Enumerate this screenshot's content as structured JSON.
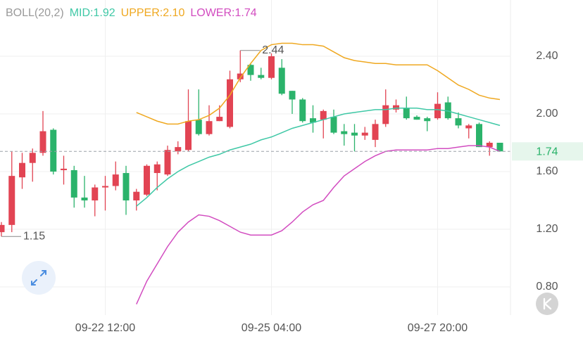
{
  "chart_data": {
    "type": "candlestick",
    "indicator": "BOLL(20,2)",
    "categories": [
      null,
      null,
      null,
      null,
      null,
      null,
      null,
      null,
      null,
      null,
      "09-22 12:00",
      null,
      null,
      null,
      null,
      null,
      null,
      null,
      null,
      null,
      null,
      null,
      null,
      null,
      null,
      null,
      "09-25 04:00",
      null,
      null,
      null,
      null,
      null,
      null,
      null,
      null,
      null,
      null,
      null,
      null,
      null,
      null,
      null,
      "09-27 20:00",
      null,
      null,
      null,
      null,
      null,
      null
    ],
    "open": [
      1.18,
      1.23,
      1.56,
      1.66,
      1.73,
      1.89,
      1.61,
      1.61,
      1.42,
      1.4,
      1.49,
      1.5,
      1.59,
      1.4,
      1.44,
      1.59,
      1.58,
      1.74,
      1.75,
      1.96,
      1.86,
      1.95,
      1.91,
      2.24,
      2.34,
      2.27,
      2.25,
      2.32,
      2.16,
      2.1,
      1.97,
      1.96,
      1.98,
      1.88,
      1.87,
      1.85,
      1.82,
      1.93,
      2.03,
      2.04,
      1.98,
      1.97,
      1.97,
      2.08,
      1.97,
      1.9,
      1.93,
      1.77,
      1.8
    ],
    "high": [
      1.25,
      1.74,
      1.73,
      1.76,
      2.02,
      1.9,
      1.71,
      1.64,
      1.57,
      1.51,
      1.57,
      1.67,
      1.64,
      1.48,
      1.65,
      1.67,
      1.78,
      1.81,
      2.17,
      2.17,
      2.06,
      2.06,
      2.3,
      2.44,
      2.35,
      2.32,
      2.42,
      2.38,
      2.16,
      2.11,
      2.06,
      2.03,
      2.03,
      1.93,
      1.93,
      1.91,
      1.96,
      2.17,
      2.1,
      2.12,
      1.99,
      1.98,
      2.15,
      2.12,
      2.01,
      1.93,
      1.94,
      1.81,
      1.8
    ],
    "low": [
      1.15,
      1.18,
      1.48,
      1.53,
      1.71,
      1.58,
      1.51,
      1.35,
      1.35,
      1.29,
      1.33,
      1.47,
      1.3,
      1.33,
      1.43,
      1.47,
      1.57,
      1.72,
      1.74,
      1.85,
      1.85,
      1.95,
      1.9,
      2.22,
      2.23,
      2.24,
      2.24,
      2.13,
      2.0,
      1.94,
      1.87,
      1.83,
      1.86,
      1.78,
      1.74,
      1.82,
      1.77,
      1.91,
      2.01,
      1.96,
      1.96,
      1.88,
      1.96,
      1.96,
      1.9,
      1.83,
      1.77,
      1.71,
      1.74
    ],
    "close": [
      1.23,
      1.57,
      1.66,
      1.73,
      1.88,
      1.6,
      1.62,
      1.42,
      1.4,
      1.49,
      1.5,
      1.58,
      1.4,
      1.46,
      1.64,
      1.65,
      1.75,
      1.77,
      1.95,
      1.86,
      1.95,
      1.98,
      2.24,
      2.28,
      2.27,
      2.25,
      2.4,
      2.14,
      2.1,
      1.95,
      1.94,
      2.02,
      1.87,
      1.86,
      1.85,
      1.87,
      1.93,
      2.06,
      2.06,
      1.97,
      1.96,
      1.95,
      2.07,
      1.97,
      1.92,
      1.92,
      1.77,
      1.8,
      1.74
    ],
    "up_color": "#e24453",
    "down_color": "#2bb36b",
    "series": [
      {
        "name": "MID:1.92",
        "color": "#3fc8a6",
        "values": [
          null,
          null,
          null,
          null,
          null,
          null,
          null,
          null,
          null,
          null,
          null,
          null,
          null,
          1.36,
          1.42,
          1.49,
          1.55,
          1.6,
          1.64,
          1.67,
          1.7,
          1.72,
          1.75,
          1.77,
          1.79,
          1.82,
          1.84,
          1.87,
          1.9,
          1.92,
          1.94,
          1.96,
          1.98,
          2.0,
          2.01,
          2.02,
          2.03,
          2.03,
          2.04,
          2.04,
          2.04,
          2.03,
          2.03,
          2.02,
          2.0,
          1.98,
          1.96,
          1.94,
          1.92
        ]
      },
      {
        "name": "UPPER:2.10",
        "color": "#efa820",
        "values": [
          null,
          null,
          null,
          null,
          null,
          null,
          null,
          null,
          null,
          null,
          null,
          null,
          null,
          2.01,
          1.98,
          1.95,
          1.93,
          1.93,
          1.95,
          1.96,
          1.99,
          2.04,
          2.13,
          2.25,
          2.35,
          2.44,
          2.48,
          2.49,
          2.49,
          2.48,
          2.48,
          2.47,
          2.43,
          2.39,
          2.37,
          2.36,
          2.35,
          2.35,
          2.34,
          2.34,
          2.34,
          2.34,
          2.3,
          2.25,
          2.2,
          2.17,
          2.13,
          2.11,
          2.1
        ]
      },
      {
        "name": "LOWER:1.74",
        "color": "#d24cc0",
        "values": [
          null,
          null,
          null,
          null,
          null,
          null,
          null,
          null,
          null,
          null,
          null,
          null,
          null,
          0.68,
          0.84,
          0.96,
          1.08,
          1.18,
          1.25,
          1.3,
          1.29,
          1.26,
          1.22,
          1.18,
          1.16,
          1.16,
          1.16,
          1.19,
          1.25,
          1.32,
          1.37,
          1.4,
          1.49,
          1.57,
          1.62,
          1.67,
          1.71,
          1.74,
          1.75,
          1.75,
          1.75,
          1.75,
          1.76,
          1.76,
          1.77,
          1.78,
          1.78,
          1.77,
          1.74
        ]
      }
    ],
    "ylim": [
      0.605,
      2.79
    ],
    "yticks": [
      {
        "value": 0.8,
        "label": "0.80"
      },
      {
        "value": 1.2,
        "label": "1.20"
      },
      {
        "value": 1.6,
        "label": "1.60"
      },
      {
        "value": 2.0,
        "label": "2.00"
      },
      {
        "value": 2.4,
        "label": "2.40"
      }
    ],
    "grid": true,
    "high_label": 2.44,
    "low_label": 1.15,
    "last_price": 1.74
  }
}
